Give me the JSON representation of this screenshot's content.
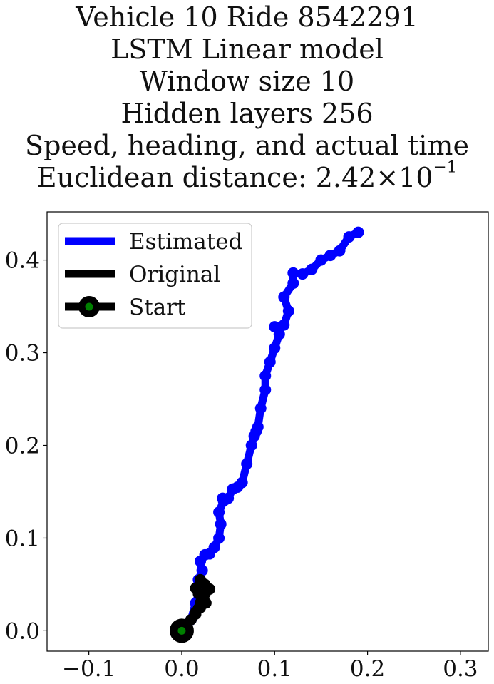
{
  "chart_data": {
    "type": "line",
    "title_lines": [
      "Vehicle 10 Ride 8542291",
      "LSTM Linear model",
      "Window size 10",
      "Hidden layers 256",
      "Speed, heading, and actual time"
    ],
    "distance_prefix": "Euclidean distance: 2.42",
    "distance_times": "×",
    "distance_base": "10",
    "distance_exp": "−1",
    "xlabel": "",
    "ylabel": "",
    "xlim": [
      -0.145,
      0.33
    ],
    "ylim": [
      -0.022,
      0.452
    ],
    "x_ticks": [
      -0.1,
      0.0,
      0.1,
      0.2,
      0.3
    ],
    "x_tick_labels": [
      "−0.1",
      "0.0",
      "0.1",
      "0.2",
      "0.3"
    ],
    "y_ticks": [
      0.0,
      0.1,
      0.2,
      0.3,
      0.4
    ],
    "y_tick_labels": [
      "0.0",
      "0.1",
      "0.2",
      "0.3",
      "0.4"
    ],
    "grid": false,
    "legend_position": "top-left",
    "legend": [
      "Estimated",
      "Original",
      "Start"
    ],
    "series": [
      {
        "name": "Estimated",
        "color": "#0000ff",
        "x": [
          0.0,
          0.01,
          0.015,
          0.02,
          0.018,
          0.022,
          0.02,
          0.025,
          0.03,
          0.035,
          0.04,
          0.042,
          0.04,
          0.045,
          0.044,
          0.046,
          0.048,
          0.05,
          0.055,
          0.06,
          0.065,
          0.07,
          0.075,
          0.078,
          0.08,
          0.082,
          0.085,
          0.09,
          0.09,
          0.095,
          0.1,
          0.105,
          0.1,
          0.11,
          0.115,
          0.11,
          0.12,
          0.12,
          0.13,
          0.14,
          0.15,
          0.16,
          0.17,
          0.18,
          0.19
        ],
        "y": [
          0.0,
          0.012,
          0.03,
          0.045,
          0.055,
          0.065,
          0.075,
          0.082,
          0.083,
          0.09,
          0.1,
          0.115,
          0.128,
          0.14,
          0.143,
          0.142,
          0.142,
          0.143,
          0.153,
          0.155,
          0.16,
          0.18,
          0.2,
          0.21,
          0.215,
          0.22,
          0.24,
          0.26,
          0.275,
          0.29,
          0.305,
          0.32,
          0.328,
          0.33,
          0.345,
          0.36,
          0.375,
          0.386,
          0.385,
          0.39,
          0.4,
          0.405,
          0.41,
          0.425,
          0.43
        ]
      },
      {
        "name": "Original",
        "color": "#000000",
        "x": [
          0.0,
          0.005,
          0.01,
          0.015,
          0.018,
          0.02,
          0.022,
          0.025,
          0.028,
          0.03,
          0.025,
          0.02,
          0.015,
          0.018,
          0.022,
          0.026,
          0.02,
          0.015
        ],
        "y": [
          0.0,
          0.006,
          0.012,
          0.018,
          0.024,
          0.03,
          0.036,
          0.04,
          0.046,
          0.045,
          0.05,
          0.055,
          0.046,
          0.04,
          0.035,
          0.03,
          0.025,
          0.02
        ]
      }
    ],
    "start_point": {
      "x": 0.0,
      "y": 0.0
    },
    "colors": {
      "estimated": "#0000ff",
      "original": "#000000",
      "start_fill": "#008000",
      "start_edge": "#000000"
    }
  }
}
